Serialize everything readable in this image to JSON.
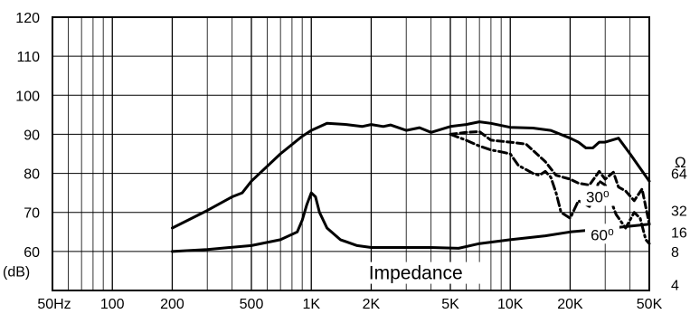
{
  "chart_data": {
    "type": "line",
    "title": "",
    "xlabel": "",
    "ylabel": "(dB)",
    "x_scale": "log",
    "xlim": [
      50,
      50000
    ],
    "ylim": [
      50,
      120
    ],
    "grid": true,
    "x_ticks": [
      {
        "value": 50,
        "label": "50Hz"
      },
      {
        "value": 100,
        "label": "100"
      },
      {
        "value": 200,
        "label": "200"
      },
      {
        "value": 500,
        "label": "500"
      },
      {
        "value": 1000,
        "label": "1K"
      },
      {
        "value": 2000,
        "label": "2K"
      },
      {
        "value": 5000,
        "label": "5K"
      },
      {
        "value": 10000,
        "label": "10K"
      },
      {
        "value": 20000,
        "label": "20K"
      },
      {
        "value": 50000,
        "label": "50K"
      }
    ],
    "y_ticks": [
      {
        "value": 120,
        "label": "120"
      },
      {
        "value": 110,
        "label": "110"
      },
      {
        "value": 100,
        "label": "100"
      },
      {
        "value": 90,
        "label": "90"
      },
      {
        "value": 80,
        "label": "80"
      },
      {
        "value": 70,
        "label": "70"
      },
      {
        "value": 60,
        "label": "60"
      }
    ],
    "right_axis": {
      "unit": "Ω",
      "ticks": [
        {
          "value": 64,
          "label": "64",
          "y_at": 80
        },
        {
          "value": 32,
          "label": "32",
          "y_at": 70.5
        },
        {
          "value": 16,
          "label": "16",
          "y_at": 65
        },
        {
          "value": 8,
          "label": "8",
          "y_at": 60
        },
        {
          "value": 4,
          "label": "4",
          "y_at": 51.5
        }
      ]
    },
    "series": [
      {
        "name": "",
        "style": "solid",
        "x": [
          200,
          300,
          400,
          450,
          500,
          700,
          900,
          1000,
          1200,
          1500,
          1800,
          2000,
          2300,
          2500,
          3000,
          3500,
          4000,
          5000,
          6000,
          7000,
          8000,
          10000,
          13000,
          16000,
          20000,
          22000,
          24000,
          26000,
          28000,
          30000,
          35000,
          40000,
          50000
        ],
        "y": [
          66,
          70.5,
          74,
          75,
          78,
          85,
          89.5,
          91,
          92.8,
          92.5,
          92,
          92.5,
          92,
          92.4,
          91,
          91.7,
          90.5,
          92,
          92.5,
          93.2,
          92.8,
          91.8,
          91.6,
          91,
          89,
          88,
          86.5,
          86.5,
          88,
          88,
          89,
          85,
          78
        ]
      },
      {
        "name": "Impedance",
        "style": "solid",
        "x": [
          200,
          300,
          500,
          700,
          850,
          900,
          950,
          1000,
          1050,
          1100,
          1200,
          1400,
          1700,
          2000,
          3000,
          4000,
          5500,
          7000,
          10000,
          15000,
          20000,
          30000,
          50000
        ],
        "y": [
          60,
          60.5,
          61.5,
          63,
          65,
          68,
          72,
          75,
          74,
          70,
          66,
          63,
          61.5,
          61,
          61,
          61,
          60.8,
          62,
          63,
          64,
          65,
          65.8,
          67
        ]
      },
      {
        "name": "30⁰",
        "style": "dashed",
        "x": [
          5000,
          6000,
          7000,
          8000,
          10000,
          12000,
          15000,
          17000,
          20000,
          22000,
          25000,
          28000,
          30000,
          33000,
          35000,
          38000,
          42000,
          46000,
          50000
        ],
        "y": [
          90,
          90.5,
          90.7,
          88.5,
          88,
          87.5,
          83,
          79.5,
          78.5,
          77.5,
          77,
          80.5,
          78.5,
          80.3,
          76.5,
          75.5,
          73,
          76,
          67
        ]
      },
      {
        "name": "60⁰",
        "style": "dashdot",
        "x": [
          5000,
          6000,
          7000,
          8000,
          9000,
          10000,
          11000,
          12000,
          13000,
          14000,
          15000,
          16000,
          17000,
          18000,
          20000,
          22000,
          25000,
          28000,
          30000,
          34000,
          38000,
          42000,
          45000,
          48000,
          50000
        ],
        "y": [
          90,
          88.5,
          87,
          86,
          85.5,
          85,
          82,
          81,
          80,
          79.5,
          80.5,
          79,
          75,
          70,
          68.5,
          73,
          71.5,
          78,
          77,
          69.5,
          66,
          70,
          68.5,
          63,
          62
        ]
      }
    ],
    "annotations": [
      {
        "text": "30⁰",
        "x": 27500,
        "y": 74
      },
      {
        "text": "60⁰",
        "x": 29000,
        "y": 64.3
      },
      {
        "text": "Impedance",
        "x": 3350,
        "y": 54.5
      }
    ]
  }
}
